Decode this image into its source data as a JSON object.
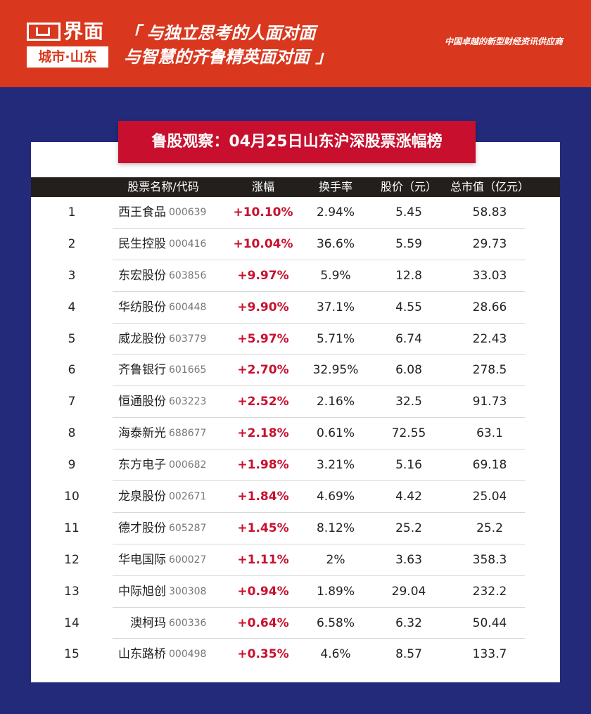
{
  "header": {
    "logo_text": "界面",
    "logo_city": "城市·山东",
    "slogan_line1": "「 与独立思考的人面对面",
    "slogan_line2": "与智慧的齐鲁精英面对面 」",
    "tagline": "中国卓越的新型财经资讯供应商",
    "colors": {
      "header_bg": "#d9381e",
      "page_bg": "#232a7a",
      "title_bg": "#c8102e",
      "table_head_bg": "#231f1c"
    }
  },
  "title": "鲁股观察：04月25日山东沪深股票涨幅榜",
  "columns": {
    "name": "股票名称/代码",
    "change": "涨幅",
    "turnover": "换手率",
    "price": "股价（元）",
    "market_cap": "总市值（亿元）"
  },
  "rows": [
    {
      "idx": "1",
      "name": "西王食品",
      "code": "000639",
      "change": "+10.10%",
      "turnover": "2.94%",
      "price": "5.45",
      "cap": "58.83"
    },
    {
      "idx": "2",
      "name": "民生控股",
      "code": "000416",
      "change": "+10.04%",
      "turnover": "36.6%",
      "price": "5.59",
      "cap": "29.73"
    },
    {
      "idx": "3",
      "name": "东宏股份",
      "code": "603856",
      "change": "+9.97%",
      "turnover": "5.9%",
      "price": "12.8",
      "cap": "33.03"
    },
    {
      "idx": "4",
      "name": "华纺股份",
      "code": "600448",
      "change": "+9.90%",
      "turnover": "37.1%",
      "price": "4.55",
      "cap": "28.66"
    },
    {
      "idx": "5",
      "name": "威龙股份",
      "code": "603779",
      "change": "+5.97%",
      "turnover": "5.71%",
      "price": "6.74",
      "cap": "22.43"
    },
    {
      "idx": "6",
      "name": "齐鲁银行",
      "code": "601665",
      "change": "+2.70%",
      "turnover": "32.95%",
      "price": "6.08",
      "cap": "278.5"
    },
    {
      "idx": "7",
      "name": "恒通股份",
      "code": "603223",
      "change": "+2.52%",
      "turnover": "2.16%",
      "price": "32.5",
      "cap": "91.73"
    },
    {
      "idx": "8",
      "name": "海泰新光",
      "code": "688677",
      "change": "+2.18%",
      "turnover": "0.61%",
      "price": "72.55",
      "cap": "63.1"
    },
    {
      "idx": "9",
      "name": "东方电子",
      "code": "000682",
      "change": "+1.98%",
      "turnover": "3.21%",
      "price": "5.16",
      "cap": "69.18"
    },
    {
      "idx": "10",
      "name": "龙泉股份",
      "code": "002671",
      "change": "+1.84%",
      "turnover": "4.69%",
      "price": "4.42",
      "cap": "25.04"
    },
    {
      "idx": "11",
      "name": "德才股份",
      "code": "605287",
      "change": "+1.45%",
      "turnover": "8.12%",
      "price": "25.2",
      "cap": "25.2"
    },
    {
      "idx": "12",
      "name": "华电国际",
      "code": "600027",
      "change": "+1.11%",
      "turnover": "2%",
      "price": "3.63",
      "cap": "358.3"
    },
    {
      "idx": "13",
      "name": "中际旭创",
      "code": "300308",
      "change": "+0.94%",
      "turnover": "1.89%",
      "price": "29.04",
      "cap": "232.2"
    },
    {
      "idx": "14",
      "name": "澳柯玛",
      "code": "600336",
      "change": "+0.64%",
      "turnover": "6.58%",
      "price": "6.32",
      "cap": "50.44"
    },
    {
      "idx": "15",
      "name": "山东路桥",
      "code": "000498",
      "change": "+0.35%",
      "turnover": "4.6%",
      "price": "8.57",
      "cap": "133.7"
    }
  ]
}
